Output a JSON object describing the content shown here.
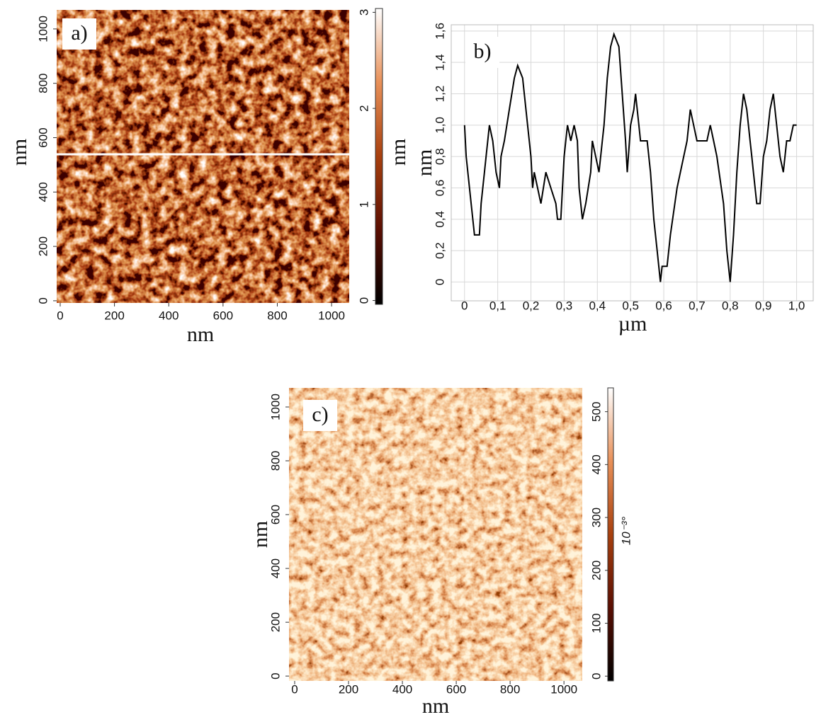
{
  "chart_data": [
    {
      "type": "image",
      "label": "a)",
      "xlabel": "nm",
      "ylabel": "nm",
      "xlim": [
        -13,
        1065
      ],
      "ylim": [
        -8,
        1070
      ],
      "xticks": [
        0,
        200,
        400,
        600,
        800,
        1000
      ],
      "yticks": [
        0,
        200,
        400,
        600,
        800,
        1000
      ],
      "colorbar": {
        "label": "nm",
        "lim": [
          -0.04,
          3.04
        ],
        "ticks": [
          0,
          1,
          2,
          3
        ],
        "colors": [
          "#000000",
          "#5a0e02",
          "#a8400e",
          "#e89058",
          "#ffffff"
        ]
      }
    },
    {
      "type": "line",
      "label": "b)",
      "xlabel": "µm",
      "ylabel": "nm",
      "color": "#000000",
      "grid": true,
      "xlim": [
        -0.04,
        1.05
      ],
      "ylim": [
        -0.12,
        1.64
      ],
      "xticks": [
        0,
        {
          "value": 0.1,
          "label": "0,1"
        },
        {
          "value": 0.2,
          "label": "0,2"
        },
        {
          "value": 0.3,
          "label": "0,3"
        },
        {
          "value": 0.4,
          "label": "0,4"
        },
        {
          "value": 0.5,
          "label": "0,5"
        },
        {
          "value": 0.6,
          "label": "0,6"
        },
        {
          "value": 0.7,
          "label": "0,7"
        },
        {
          "value": 0.8,
          "label": "0,8"
        },
        {
          "value": 0.9,
          "label": "0,9"
        },
        {
          "value": 1.0,
          "label": "1,0"
        }
      ],
      "yticks": [
        0,
        {
          "value": 0.2,
          "label": "0,2"
        },
        {
          "value": 0.4,
          "label": "0,4"
        },
        {
          "value": 0.6,
          "label": "0,6"
        },
        {
          "value": 0.8,
          "label": "0,8"
        },
        {
          "value": 1.0,
          "label": "1,0"
        },
        {
          "value": 1.2,
          "label": "1,2"
        },
        {
          "value": 1.4,
          "label": "1,4"
        },
        {
          "value": 1.6,
          "label": "1,6"
        }
      ],
      "x": [
        0,
        0.005,
        0.02,
        0.03,
        0.045,
        0.05,
        0.06,
        0.065,
        0.075,
        0.085,
        0.095,
        0.105,
        0.11,
        0.12,
        0.135,
        0.15,
        0.16,
        0.175,
        0.19,
        0.2,
        0.205,
        0.21,
        0.22,
        0.23,
        0.245,
        0.26,
        0.275,
        0.28,
        0.29,
        0.3,
        0.305,
        0.31,
        0.32,
        0.33,
        0.34,
        0.345,
        0.355,
        0.365,
        0.38,
        0.385,
        0.395,
        0.405,
        0.415,
        0.42,
        0.43,
        0.44,
        0.45,
        0.465,
        0.475,
        0.485,
        0.49,
        0.5,
        0.51,
        0.515,
        0.525,
        0.53,
        0.55,
        0.56,
        0.57,
        0.58,
        0.59,
        0.595,
        0.61,
        0.62,
        0.64,
        0.66,
        0.67,
        0.675,
        0.68,
        0.69,
        0.7,
        0.73,
        0.74,
        0.75,
        0.76,
        0.78,
        0.79,
        0.8,
        0.81,
        0.82,
        0.83,
        0.84,
        0.85,
        0.86,
        0.865,
        0.87,
        0.88,
        0.89,
        0.9,
        0.91,
        0.92,
        0.93,
        0.94,
        0.95,
        0.96,
        0.97,
        0.98,
        0.99,
        1.0
      ],
      "values": [
        1.0,
        0.8,
        0.5,
        0.3,
        0.3,
        0.5,
        0.7,
        0.8,
        1.0,
        0.9,
        0.7,
        0.6,
        0.8,
        0.9,
        1.1,
        1.3,
        1.38,
        1.3,
        1.0,
        0.8,
        0.6,
        0.7,
        0.6,
        0.5,
        0.7,
        0.6,
        0.5,
        0.4,
        0.4,
        0.8,
        0.9,
        1.0,
        0.9,
        1.0,
        0.9,
        0.6,
        0.4,
        0.5,
        0.7,
        0.9,
        0.8,
        0.7,
        0.9,
        1.0,
        1.3,
        1.5,
        1.58,
        1.5,
        1.2,
        0.9,
        0.7,
        1.0,
        1.1,
        1.2,
        1.0,
        0.9,
        0.9,
        0.7,
        0.4,
        0.2,
        0.0,
        0.1,
        0.1,
        0.3,
        0.6,
        0.8,
        0.9,
        1.0,
        1.1,
        1.0,
        0.9,
        0.9,
        1.0,
        0.9,
        0.8,
        0.5,
        0.2,
        0.0,
        0.3,
        0.7,
        1.0,
        1.2,
        1.1,
        0.9,
        0.8,
        0.7,
        0.5,
        0.5,
        0.8,
        0.9,
        1.1,
        1.2,
        1.0,
        0.8,
        0.7,
        0.9,
        0.9,
        1.0,
        1.0
      ]
    },
    {
      "type": "image",
      "label": "c)",
      "xlabel": "nm",
      "ylabel": "nm",
      "xlim": [
        -21,
        1068
      ],
      "ylim": [
        -18,
        1071
      ],
      "xticks": [
        0,
        200,
        400,
        600,
        800,
        1000
      ],
      "yticks": [
        0,
        200,
        400,
        600,
        800,
        1000
      ],
      "colorbar": {
        "label": "10⁻³°",
        "lim": [
          -9,
          545
        ],
        "ticks": [
          0,
          100,
          200,
          300,
          400,
          500
        ],
        "colors": [
          "#000000",
          "#5a0e02",
          "#a8400e",
          "#e89058",
          "#ffffff"
        ]
      }
    }
  ]
}
